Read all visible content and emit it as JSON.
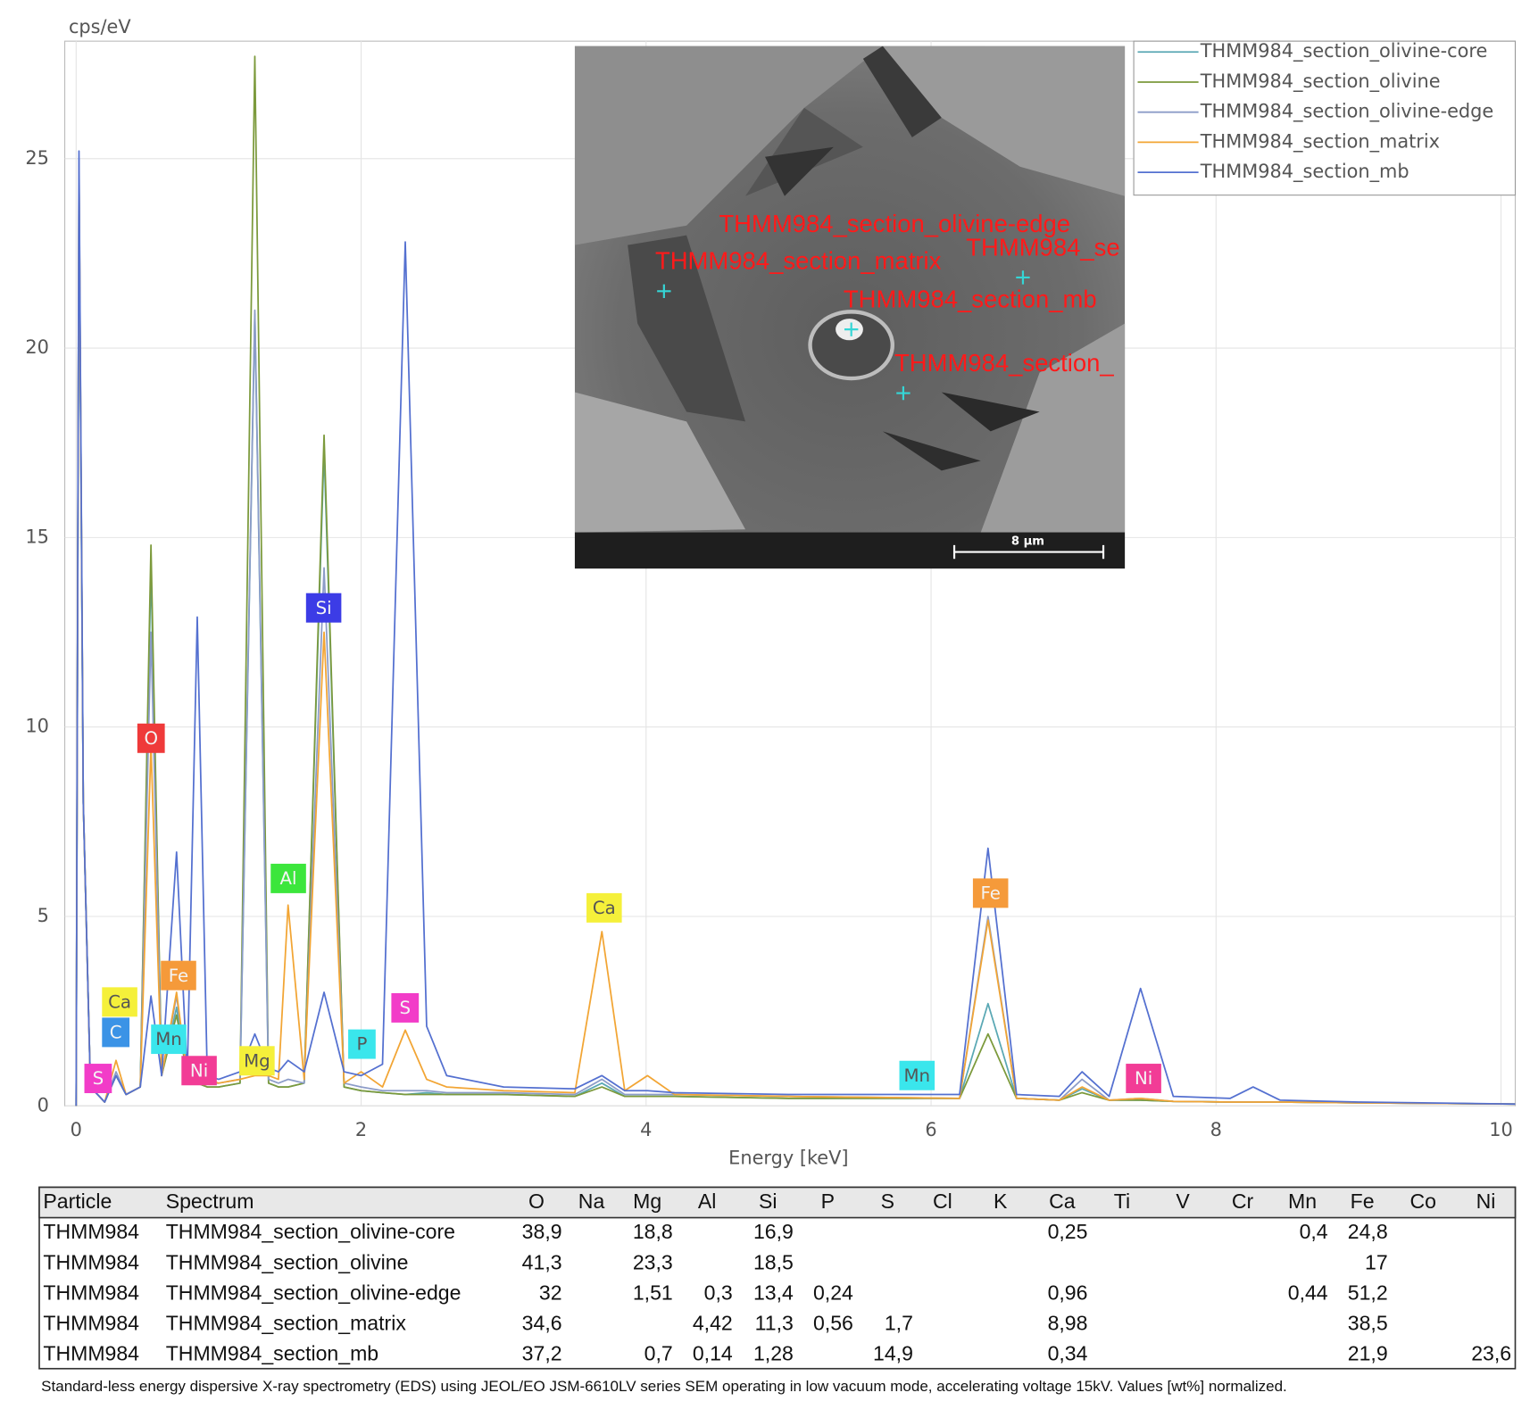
{
  "chart_data": {
    "type": "line",
    "y_label": "cps/eV",
    "x_label": "Energy [keV]",
    "xlim": [
      -0.08,
      10.1
    ],
    "ylim": [
      0,
      28.1
    ],
    "xticks": [
      0,
      2,
      4,
      6,
      8,
      10
    ],
    "yticks": [
      0,
      5,
      10,
      15,
      20,
      25
    ],
    "grid": true,
    "legend": "upper right",
    "x": [
      0,
      0.02,
      0.05,
      0.1,
      0.2,
      0.28,
      0.35,
      0.45,
      0.525,
      0.6,
      0.705,
      0.78,
      0.85,
      0.92,
      1.0,
      1.15,
      1.254,
      1.35,
      1.42,
      1.487,
      1.6,
      1.74,
      1.88,
      2.0,
      2.15,
      2.31,
      2.46,
      2.6,
      3.0,
      3.5,
      3.69,
      3.85,
      4.01,
      4.2,
      5.0,
      6.2,
      6.4,
      6.6,
      6.9,
      7.06,
      7.25,
      7.47,
      7.7,
      8.1,
      8.26,
      8.45,
      9.0,
      10.1
    ],
    "series": [
      {
        "name": "THMM984_section_olivine-core",
        "color": "#5aa8b4",
        "values": [
          0,
          24,
          8,
          0.5,
          0.1,
          0.8,
          0.3,
          0.5,
          14.2,
          0.8,
          2.6,
          0.8,
          0.6,
          0.5,
          0.5,
          0.6,
          20.9,
          0.6,
          0.5,
          0.5,
          0.6,
          17.3,
          0.5,
          0.4,
          0.35,
          0.3,
          0.35,
          0.3,
          0.3,
          0.25,
          0.6,
          0.25,
          0.25,
          0.25,
          0.2,
          0.2,
          2.7,
          0.2,
          0.15,
          0.45,
          0.15,
          0.15,
          0.12,
          0.1,
          0.1,
          0.1,
          0.08,
          0.05
        ]
      },
      {
        "name": "THMM984_section_olivine",
        "color": "#7c9a3c",
        "values": [
          0,
          24.6,
          8,
          0.5,
          0.1,
          0.8,
          0.3,
          0.5,
          14.8,
          0.8,
          2.4,
          0.8,
          0.6,
          0.5,
          0.5,
          0.6,
          27.7,
          0.6,
          0.5,
          0.5,
          0.6,
          17.7,
          0.5,
          0.4,
          0.35,
          0.3,
          0.3,
          0.3,
          0.3,
          0.25,
          0.5,
          0.25,
          0.25,
          0.25,
          0.2,
          0.2,
          1.9,
          0.2,
          0.15,
          0.35,
          0.15,
          0.15,
          0.12,
          0.1,
          0.1,
          0.1,
          0.08,
          0.05
        ]
      },
      {
        "name": "THMM984_section_olivine-edge",
        "color": "#8c9cc8",
        "values": [
          0,
          25,
          8,
          0.5,
          0.1,
          0.9,
          0.3,
          0.5,
          12.5,
          0.8,
          2.9,
          0.8,
          0.7,
          0.6,
          0.6,
          0.7,
          21,
          0.7,
          0.6,
          0.7,
          0.6,
          14.2,
          0.6,
          0.5,
          0.4,
          0.4,
          0.4,
          0.35,
          0.35,
          0.3,
          0.7,
          0.3,
          0.3,
          0.3,
          0.25,
          0.2,
          5.0,
          0.2,
          0.15,
          0.7,
          0.15,
          0.2,
          0.12,
          0.1,
          0.1,
          0.1,
          0.08,
          0.05
        ]
      },
      {
        "name": "THMM984_section_matrix",
        "color": "#f2a534",
        "values": [
          0,
          24.7,
          8,
          0.5,
          0.1,
          1.2,
          0.3,
          0.5,
          9.5,
          0.8,
          3.0,
          0.8,
          0.7,
          0.7,
          0.6,
          0.7,
          0.8,
          0.8,
          0.7,
          5.3,
          0.7,
          12.5,
          0.6,
          0.9,
          0.5,
          2.0,
          0.7,
          0.5,
          0.4,
          0.35,
          4.6,
          0.4,
          0.8,
          0.3,
          0.25,
          0.2,
          4.9,
          0.2,
          0.15,
          0.5,
          0.15,
          0.2,
          0.12,
          0.1,
          0.1,
          0.1,
          0.08,
          0.05
        ]
      },
      {
        "name": "THMM984_section_mb",
        "color": "#5470d0",
        "values": [
          0,
          25.2,
          8,
          0.5,
          0.1,
          0.8,
          0.3,
          0.5,
          2.9,
          0.8,
          6.7,
          0.8,
          12.9,
          0.8,
          0.7,
          0.9,
          1.9,
          1.0,
          0.9,
          1.2,
          0.9,
          3.0,
          0.9,
          0.8,
          1.1,
          22.8,
          2.1,
          0.8,
          0.5,
          0.45,
          0.8,
          0.4,
          0.4,
          0.35,
          0.3,
          0.3,
          6.8,
          0.3,
          0.25,
          0.9,
          0.25,
          3.1,
          0.25,
          0.2,
          0.5,
          0.15,
          0.1,
          0.05
        ]
      }
    ],
    "annotations": [
      {
        "text": "S",
        "color": "#f23cc8"
      },
      {
        "text": "C",
        "color": "#3b93e6"
      },
      {
        "text": "Ca",
        "color": "#f5f03a"
      },
      {
        "text": "O",
        "color": "#ef3a3a"
      },
      {
        "text": "Fe",
        "color": "#f59a3a"
      },
      {
        "text": "Mn",
        "color": "#3ae6ec"
      },
      {
        "text": "Ni",
        "color": "#f23c96"
      },
      {
        "text": "Mg",
        "color": "#f5f03a"
      },
      {
        "text": "Al",
        "color": "#3ce63c"
      },
      {
        "text": "Si",
        "color": "#3c3ce6"
      },
      {
        "text": "P",
        "color": "#3ae6ec"
      },
      {
        "text": "S",
        "color": "#f23cc8"
      },
      {
        "text": "Ca",
        "color": "#f5f03a"
      },
      {
        "text": "Mn",
        "color": "#3ae6ec"
      },
      {
        "text": "Fe",
        "color": "#f59a3a"
      },
      {
        "text": "Ni",
        "color": "#f23c96"
      }
    ]
  },
  "inset": {
    "labels": [
      "THMM984_section_olivine-edge",
      "THMM984_se",
      "THMM984_section_matrix",
      "THMM984_section_mb",
      "THMM984_section_"
    ],
    "scale_bar": "8 µm"
  },
  "table": {
    "columns": [
      "Particle",
      "Spectrum",
      "O",
      "Na",
      "Mg",
      "Al",
      "Si",
      "P",
      "S",
      "Cl",
      "K",
      "Ca",
      "Ti",
      "V",
      "Cr",
      "Mn",
      "Fe",
      "Co",
      "Ni"
    ],
    "rows": [
      [
        "THMM984",
        "THMM984_section_olivine-core",
        "38,9",
        null,
        "18,8",
        null,
        "16,9",
        null,
        null,
        null,
        null,
        "0,25",
        null,
        null,
        null,
        "0,4",
        "24,8",
        null,
        null
      ],
      [
        "THMM984",
        "THMM984_section_olivine",
        "41,3",
        null,
        "23,3",
        null,
        "18,5",
        null,
        null,
        null,
        null,
        null,
        null,
        null,
        null,
        null,
        "17",
        null,
        null
      ],
      [
        "THMM984",
        "THMM984_section_olivine-edge",
        "32",
        null,
        "1,51",
        "0,3",
        "13,4",
        "0,24",
        null,
        null,
        null,
        "0,96",
        null,
        null,
        null,
        "0,44",
        "51,2",
        null,
        null
      ],
      [
        "THMM984",
        "THMM984_section_matrix",
        "34,6",
        null,
        null,
        "4,42",
        "11,3",
        "0,56",
        "1,7",
        null,
        null,
        "8,98",
        null,
        null,
        null,
        null,
        "38,5",
        null,
        null
      ],
      [
        "THMM984",
        "THMM984_section_mb",
        "37,2",
        null,
        "0,7",
        "0,14",
        "1,28",
        null,
        "14,9",
        null,
        null,
        "0,34",
        null,
        null,
        null,
        null,
        "21,9",
        null,
        "23,6"
      ]
    ],
    "caption": "Standard-less energy dispersive X-ray spectrometry (EDS) using JEOL/EO JSM-6610LV series SEM operating in low vacuum mode, accelerating voltage 15kV. Values [wt%] normalized."
  }
}
